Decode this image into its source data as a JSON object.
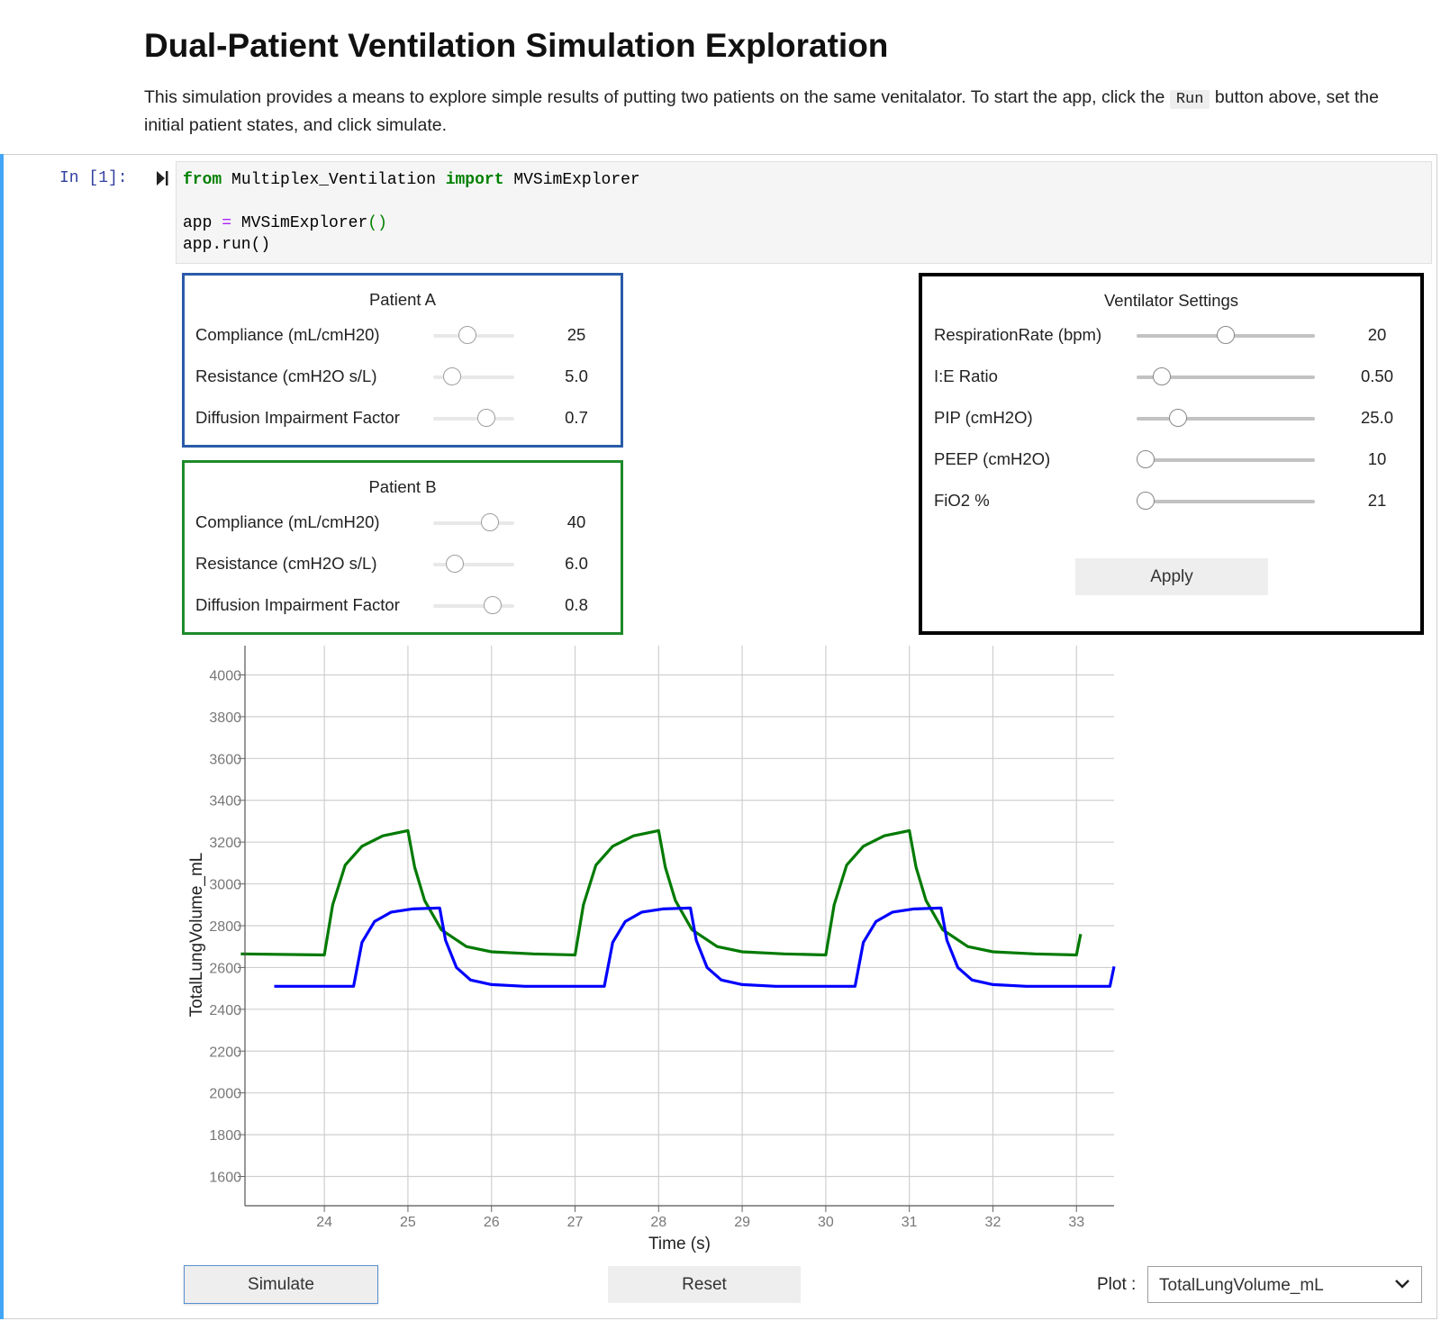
{
  "header": {
    "title": "Dual-Patient Ventilation Simulation Exploration",
    "desc_before": "This simulation provides a means to explore simple results of putting two patients on the same venitalator. To start the app, click the ",
    "desc_code": "Run",
    "desc_after": " button above, set the initial patient states, and click simulate."
  },
  "cell": {
    "prompt": "In [1]:",
    "code": {
      "from_kw": "from",
      "module": "Multiplex_Ventilation",
      "import_kw": "import",
      "cls": "MVSimExplorer",
      "line2_var": "app",
      "line2_op": "=",
      "line2_call": "MVSimExplorer",
      "line2_paren": "()",
      "line3": "app.run()"
    }
  },
  "patient_a": {
    "title": "Patient A",
    "rows": [
      {
        "label": "Compliance (mL/cmH20)",
        "value": "25",
        "level": 0.4
      },
      {
        "label": "Resistance (cmH2O s/L)",
        "value": "5.0",
        "level": 0.15
      },
      {
        "label": "Diffusion Impairment Factor",
        "value": "0.7",
        "level": 0.7
      }
    ]
  },
  "patient_b": {
    "title": "Patient B",
    "rows": [
      {
        "label": "Compliance (mL/cmH20)",
        "value": "40",
        "level": 0.76
      },
      {
        "label": "Resistance (cmH2O s/L)",
        "value": "6.0",
        "level": 0.2
      },
      {
        "label": "Diffusion Impairment Factor",
        "value": "0.8",
        "level": 0.8
      }
    ]
  },
  "ventilator": {
    "title": "Ventilator Settings",
    "rows": [
      {
        "label": "RespirationRate (bpm)",
        "value": "20",
        "level": 0.5
      },
      {
        "label": "I:E Ratio",
        "value": "0.50",
        "level": 0.1
      },
      {
        "label": "PIP (cmH2O)",
        "value": "25.0",
        "level": 0.2
      },
      {
        "label": "PEEP (cmH2O)",
        "value": "10",
        "level": 0.0
      },
      {
        "label": "FiO2 %",
        "value": "21",
        "level": 0.0
      }
    ],
    "apply_label": "Apply"
  },
  "controls": {
    "simulate_label": "Simulate",
    "reset_label": "Reset",
    "plot_label": "Plot :",
    "plot_selected": "TotalLungVolume_mL"
  },
  "colors": {
    "patient_a": "#2a5ba8",
    "patient_b": "#1e8a2a",
    "series_a": "#0000ff",
    "series_b": "#007a00",
    "cell_accent": "#42a5f5"
  },
  "chart_data": {
    "type": "line",
    "xlabel": "Time (s)",
    "ylabel": "TotalLungVolume_mL",
    "xlim": [
      23.05,
      33.45
    ],
    "ylim": [
      1460,
      4140
    ],
    "xticks": [
      24,
      25,
      26,
      27,
      28,
      29,
      30,
      31,
      32,
      33
    ],
    "yticks": [
      1600,
      1800,
      2000,
      2200,
      2400,
      2600,
      2800,
      3000,
      3200,
      3400,
      3600,
      3800,
      4000
    ],
    "grid": true,
    "series": [
      {
        "color": "#007a00",
        "x": [
          23.0,
          24.0,
          24.1,
          24.25,
          24.45,
          24.7,
          25.0,
          25.08,
          25.2,
          25.4,
          25.7,
          26.0,
          26.5,
          27.0,
          27.1,
          27.25,
          27.45,
          27.7,
          28.0,
          28.08,
          28.2,
          28.4,
          28.7,
          29.0,
          29.5,
          30.0,
          30.1,
          30.25,
          30.45,
          30.7,
          31.0,
          31.08,
          31.2,
          31.4,
          31.7,
          32.0,
          32.5,
          33.0,
          33.05
        ],
        "y": [
          2665,
          2660,
          2900,
          3090,
          3180,
          3230,
          3255,
          3080,
          2920,
          2780,
          2700,
          2675,
          2665,
          2660,
          2900,
          3090,
          3180,
          3230,
          3255,
          3080,
          2920,
          2780,
          2700,
          2675,
          2665,
          2660,
          2900,
          3090,
          3180,
          3230,
          3255,
          3080,
          2920,
          2780,
          2700,
          2675,
          2665,
          2660,
          2760
        ]
      },
      {
        "color": "#0000ff",
        "x": [
          23.4,
          24.35,
          24.45,
          24.6,
          24.8,
          25.05,
          25.38,
          25.45,
          25.58,
          25.75,
          26.0,
          26.4,
          27.35,
          27.45,
          27.6,
          27.8,
          28.05,
          28.38,
          28.45,
          28.58,
          28.75,
          29.0,
          29.4,
          30.35,
          30.45,
          30.6,
          30.8,
          31.05,
          31.38,
          31.45,
          31.58,
          31.75,
          32.0,
          32.4,
          33.4,
          33.45
        ],
        "y": [
          2510,
          2510,
          2720,
          2820,
          2865,
          2880,
          2885,
          2730,
          2600,
          2540,
          2518,
          2510,
          2510,
          2720,
          2820,
          2865,
          2880,
          2885,
          2730,
          2600,
          2540,
          2518,
          2510,
          2510,
          2720,
          2820,
          2865,
          2880,
          2885,
          2730,
          2600,
          2540,
          2518,
          2510,
          2510,
          2605
        ]
      }
    ]
  }
}
